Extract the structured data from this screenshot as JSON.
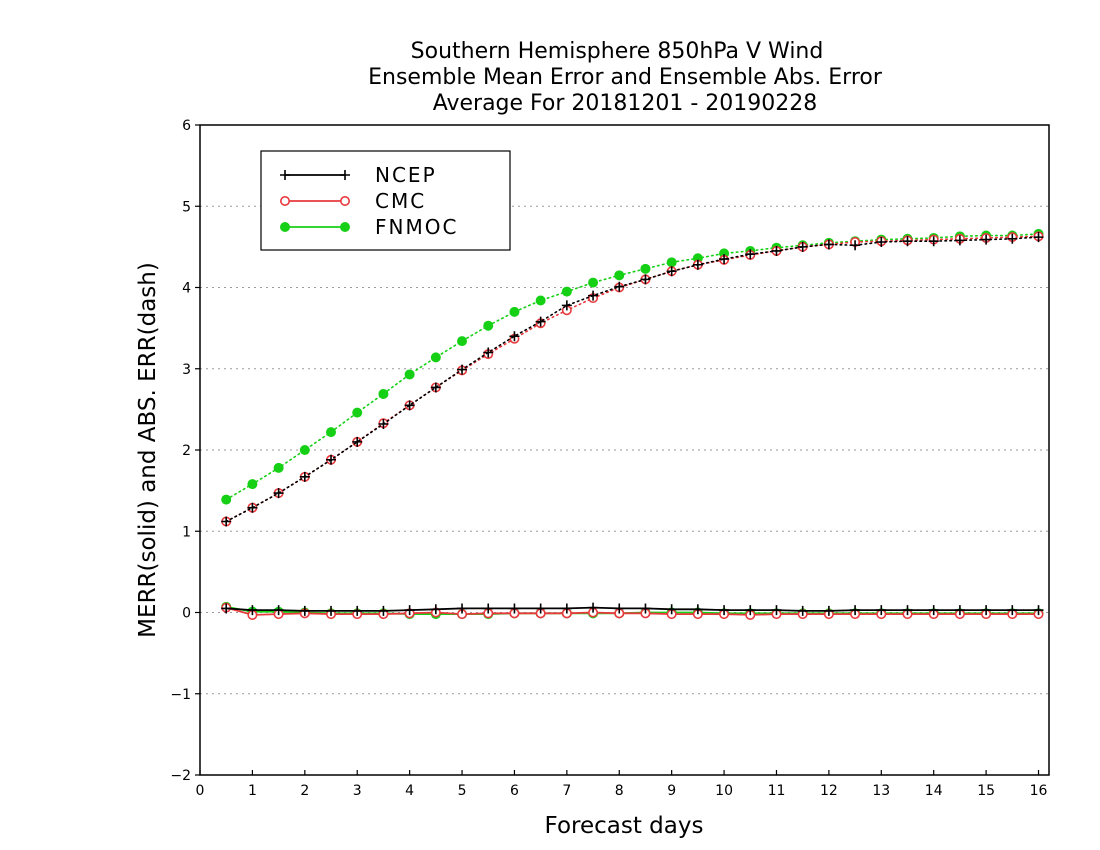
{
  "chart_data": {
    "type": "line",
    "title": "Southern Hemisphere 850hPa V Wind",
    "subtitle": "Ensemble Mean Error and Ensemble Abs. Error",
    "period": "Average For 20181201 - 20190228",
    "xlabel": "Forecast days",
    "ylabel": "MERR(solid) and ABS. ERR(dash)",
    "xlim": [
      0,
      16.2
    ],
    "ylim": [
      -2,
      6
    ],
    "xticks": [
      "0",
      "1",
      "2",
      "3",
      "4",
      "5",
      "6",
      "7",
      "8",
      "9",
      "10",
      "11",
      "12",
      "13",
      "14",
      "15",
      "16"
    ],
    "yticks": [
      "−2",
      "−1",
      "0",
      "1",
      "2",
      "3",
      "4",
      "5",
      "6"
    ],
    "grid": "horizontal dotted",
    "legend_position": "top-left",
    "x": [
      0.5,
      1,
      1.5,
      2,
      2.5,
      3,
      3.5,
      4,
      4.5,
      5,
      5.5,
      6,
      6.5,
      7,
      7.5,
      8,
      8.5,
      9,
      9.5,
      10,
      10.5,
      11,
      11.5,
      12,
      12.5,
      13,
      13.5,
      14,
      14.5,
      15,
      15.5,
      16
    ],
    "series": [
      {
        "name": "NCEP",
        "color": "#000000",
        "marker": "plus",
        "mean_error": [
          0.05,
          0.03,
          0.03,
          0.02,
          0.02,
          0.02,
          0.02,
          0.03,
          0.04,
          0.05,
          0.05,
          0.05,
          0.05,
          0.05,
          0.06,
          0.05,
          0.05,
          0.04,
          0.04,
          0.03,
          0.03,
          0.03,
          0.02,
          0.02,
          0.03,
          0.03,
          0.03,
          0.03,
          0.03,
          0.03,
          0.03,
          0.03
        ],
        "abs_error": [
          1.12,
          1.29,
          1.47,
          1.67,
          1.88,
          2.1,
          2.32,
          2.55,
          2.77,
          2.99,
          3.2,
          3.4,
          3.58,
          3.78,
          3.9,
          4.01,
          4.1,
          4.2,
          4.28,
          4.35,
          4.41,
          4.45,
          4.5,
          4.53,
          4.52,
          4.56,
          4.57,
          4.57,
          4.58,
          4.59,
          4.6,
          4.62
        ]
      },
      {
        "name": "CMC",
        "color": "#e8393d",
        "marker": "open-circle",
        "mean_error": [
          0.06,
          -0.03,
          -0.02,
          -0.01,
          -0.02,
          -0.02,
          -0.02,
          -0.01,
          0.0,
          -0.02,
          -0.01,
          -0.01,
          -0.01,
          -0.01,
          0.0,
          -0.01,
          -0.01,
          -0.02,
          -0.02,
          -0.02,
          -0.03,
          -0.02,
          -0.02,
          -0.02,
          -0.02,
          -0.02,
          -0.02,
          -0.02,
          -0.02,
          -0.02,
          -0.02,
          -0.02
        ],
        "abs_error": [
          1.12,
          1.29,
          1.47,
          1.67,
          1.88,
          2.1,
          2.33,
          2.55,
          2.77,
          2.98,
          3.18,
          3.37,
          3.56,
          3.72,
          3.87,
          4.0,
          4.1,
          4.2,
          4.28,
          4.34,
          4.4,
          4.45,
          4.5,
          4.53,
          4.56,
          4.57,
          4.58,
          4.59,
          4.6,
          4.61,
          4.62,
          4.63
        ]
      },
      {
        "name": "FNMOC",
        "color": "#16d016",
        "marker": "filled-circle",
        "mean_error": [
          0.07,
          0.01,
          0.01,
          0.0,
          -0.01,
          -0.01,
          -0.01,
          -0.02,
          -0.02,
          -0.02,
          -0.02,
          -0.01,
          -0.01,
          -0.01,
          -0.01,
          -0.01,
          0.0,
          0.0,
          0.0,
          -0.01,
          -0.01,
          -0.01,
          -0.01,
          -0.01,
          -0.01,
          -0.01,
          -0.01,
          -0.01,
          -0.01,
          -0.01,
          -0.01,
          -0.01
        ],
        "abs_error": [
          1.39,
          1.58,
          1.78,
          2.0,
          2.22,
          2.46,
          2.69,
          2.93,
          3.14,
          3.34,
          3.53,
          3.7,
          3.84,
          3.95,
          4.06,
          4.15,
          4.23,
          4.31,
          4.36,
          4.42,
          4.45,
          4.49,
          4.52,
          4.55,
          4.57,
          4.59,
          4.6,
          4.61,
          4.63,
          4.64,
          4.64,
          4.66
        ]
      }
    ]
  }
}
